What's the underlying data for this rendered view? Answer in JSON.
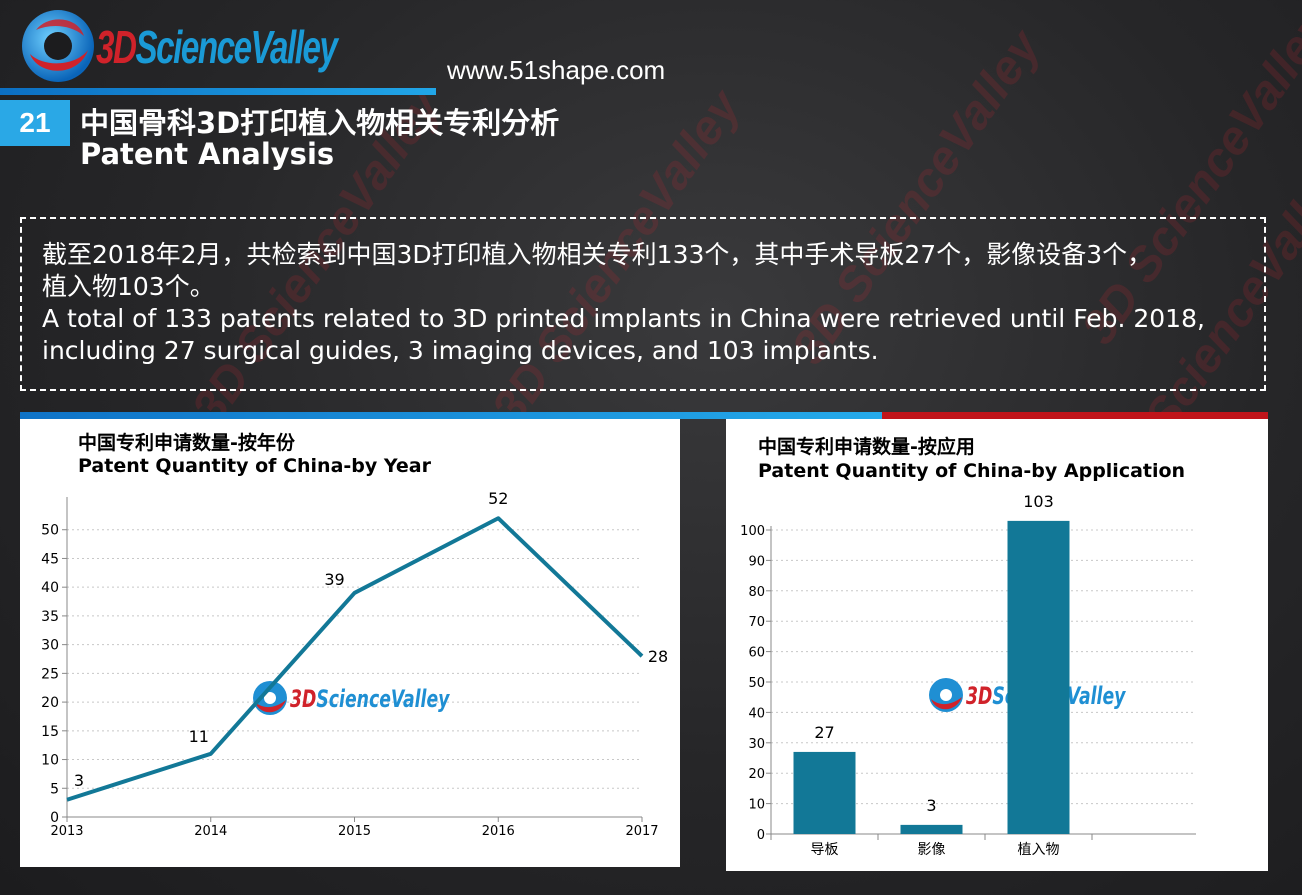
{
  "header": {
    "logo_text_red": "3D",
    "logo_text_blue": "ScienceValley",
    "website": "www.51shape.com",
    "slide_number": "21",
    "title_zh": "中国骨科3D打印植入物相关专利分析",
    "title_en": "Patent Analysis"
  },
  "summary": {
    "zh_line1": "截至2018年2月，共检索到中国3D打印植入物相关专利133个，其中手术导板27个，影像设备3个，",
    "zh_line2": "植入物103个。",
    "en_line1": "A total of 133 patents related to 3D printed implants in China were retrieved until Feb. 2018,",
    "en_line2": "including 27 surgical guides, 3 imaging devices, and 103 implants."
  },
  "colors": {
    "series": "#127897",
    "accent_blue": "#2aa8e6",
    "accent_red": "#c0141a"
  },
  "chart_data": [
    {
      "type": "line",
      "title": "中国专利申请数量-按年份",
      "subtitle": "Patent Quantity of China-by Year",
      "x": [
        "2013",
        "2014",
        "2015",
        "2016",
        "2017"
      ],
      "values": [
        3,
        11,
        39,
        52,
        28
      ],
      "data_labels": [
        "3",
        "11",
        "39",
        "52",
        "28"
      ],
      "yticks": [
        "0",
        "5",
        "10",
        "15",
        "20",
        "25",
        "30",
        "35",
        "40",
        "45",
        "50"
      ],
      "ylim": [
        0,
        55
      ],
      "grid": true,
      "watermark_red": "3D",
      "watermark_blue": "ScienceValley"
    },
    {
      "type": "bar",
      "title": "中国专利申请数量-按应用",
      "subtitle": "Patent Quantity of China-by Application",
      "categories": [
        "导板",
        "影像",
        "植入物"
      ],
      "values": [
        27,
        3,
        103
      ],
      "data_labels": [
        "27",
        "3",
        "103"
      ],
      "yticks": [
        "0",
        "10",
        "20",
        "30",
        "40",
        "50",
        "60",
        "70",
        "80",
        "90",
        "100"
      ],
      "ylim": [
        0,
        100
      ],
      "grid": true,
      "watermark_red": "3D",
      "watermark_blue": "ScienceValley"
    }
  ]
}
